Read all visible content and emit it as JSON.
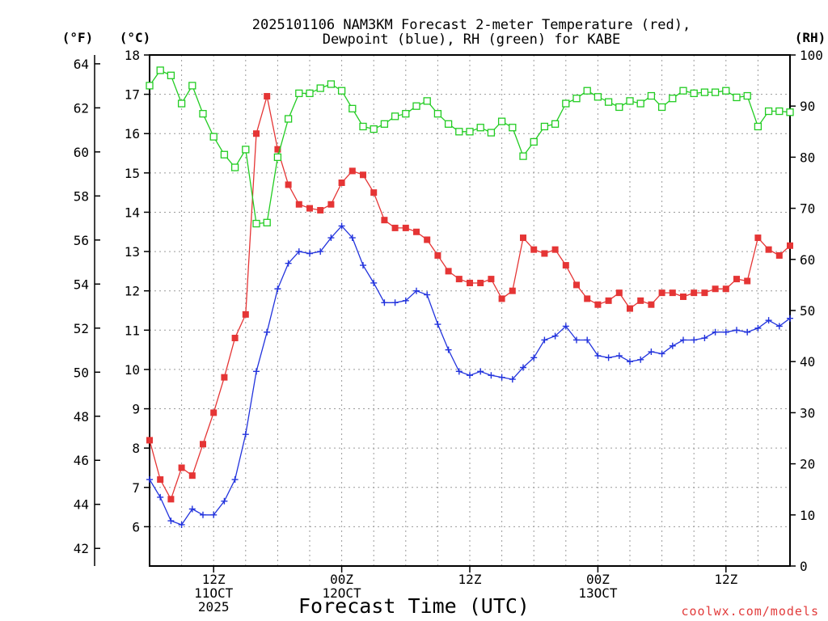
{
  "chart_data": {
    "type": "line",
    "title": "2025101106 NAM3KM Forecast 2-meter Temperature (red),",
    "subtitle": "Dewpoint (blue), RH (green) for KABE",
    "xlabel": "Forecast Time (UTC)",
    "x_units": "forecast hour",
    "x_range": [
      0,
      60
    ],
    "axes": {
      "left_f": {
        "label": "(°F)",
        "range": [
          41.2,
          64.4
        ],
        "ticks": [
          42,
          44,
          46,
          48,
          50,
          52,
          54,
          56,
          58,
          60,
          62,
          64
        ]
      },
      "left_c": {
        "label": "(°C)",
        "range": [
          5,
          18
        ],
        "ticks": [
          6,
          7,
          8,
          9,
          10,
          11,
          12,
          13,
          14,
          15,
          16,
          17,
          18
        ]
      },
      "right_rh": {
        "label": "(RH)",
        "range": [
          0,
          100
        ],
        "ticks": [
          0,
          10,
          20,
          30,
          40,
          50,
          60,
          70,
          80,
          90,
          100
        ]
      }
    },
    "x_ticks": [
      {
        "hour": 6,
        "lines": [
          "12Z",
          "11OCT",
          "2025"
        ]
      },
      {
        "hour": 18,
        "lines": [
          "00Z",
          "12OCT"
        ]
      },
      {
        "hour": 30,
        "lines": [
          "12Z"
        ]
      },
      {
        "hour": 42,
        "lines": [
          "00Z",
          "13OCT"
        ]
      },
      {
        "hour": 54,
        "lines": [
          "12Z"
        ]
      }
    ],
    "grid": true,
    "series": [
      {
        "name": "2-meter Temperature",
        "unit": "°C",
        "color": "#e53535",
        "marker": "filled-square",
        "x": [
          0,
          1,
          2,
          3,
          4,
          5,
          6,
          7,
          8,
          9,
          10,
          11,
          12,
          13,
          14,
          15,
          16,
          17,
          18,
          19,
          20,
          21,
          22,
          23,
          24,
          25,
          26,
          27,
          28,
          29,
          30,
          31,
          32,
          33,
          34,
          35,
          36,
          37,
          38,
          39,
          40,
          41,
          42,
          43,
          44,
          45,
          46,
          47,
          48,
          49,
          50,
          51,
          52,
          53,
          54,
          55,
          56,
          57,
          58,
          59,
          60
        ],
        "values": [
          8.2,
          7.2,
          6.7,
          7.5,
          7.3,
          8.1,
          8.9,
          9.8,
          10.8,
          11.4,
          16.0,
          16.95,
          15.6,
          14.7,
          14.2,
          14.1,
          14.05,
          14.2,
          14.75,
          15.05,
          14.95,
          14.5,
          13.8,
          13.6,
          13.6,
          13.5,
          13.3,
          12.9,
          12.5,
          12.3,
          12.2,
          12.2,
          12.3,
          11.8,
          12.0,
          13.35,
          13.05,
          12.95,
          13.05,
          12.65,
          12.15,
          11.8,
          11.65,
          11.75,
          11.95,
          11.55,
          11.75,
          11.65,
          11.95,
          11.95,
          11.85,
          11.95,
          11.95,
          12.05,
          12.05,
          12.3,
          12.25,
          13.35,
          13.05,
          12.9,
          13.15
        ]
      },
      {
        "name": "Dewpoint",
        "unit": "°C",
        "color": "#2233dd",
        "marker": "plus",
        "x": [
          0,
          1,
          2,
          3,
          4,
          5,
          6,
          7,
          8,
          9,
          10,
          11,
          12,
          13,
          14,
          15,
          16,
          17,
          18,
          19,
          20,
          21,
          22,
          23,
          24,
          25,
          26,
          27,
          28,
          29,
          30,
          31,
          32,
          33,
          34,
          35,
          36,
          37,
          38,
          39,
          40,
          41,
          42,
          43,
          44,
          45,
          46,
          47,
          48,
          49,
          50,
          51,
          52,
          53,
          54,
          55,
          56,
          57,
          58,
          59,
          60
        ],
        "values": [
          7.2,
          6.75,
          6.15,
          6.05,
          6.45,
          6.3,
          6.3,
          6.65,
          7.2,
          8.35,
          9.95,
          10.95,
          12.05,
          12.7,
          13.0,
          12.95,
          13.0,
          13.35,
          13.65,
          13.35,
          12.65,
          12.2,
          11.7,
          11.7,
          11.75,
          12.0,
          11.9,
          11.15,
          10.5,
          9.95,
          9.85,
          9.95,
          9.85,
          9.8,
          9.75,
          10.05,
          10.3,
          10.75,
          10.85,
          11.1,
          10.75,
          10.75,
          10.35,
          10.3,
          10.35,
          10.2,
          10.25,
          10.45,
          10.4,
          10.6,
          10.75,
          10.75,
          10.8,
          10.95,
          10.95,
          11.0,
          10.95,
          11.05,
          11.25,
          11.1,
          11.3
        ]
      },
      {
        "name": "Relative Humidity",
        "unit": "%",
        "color": "#22cc22",
        "marker": "open-square",
        "x": [
          0,
          1,
          2,
          3,
          4,
          5,
          6,
          7,
          8,
          9,
          10,
          11,
          12,
          13,
          14,
          15,
          16,
          17,
          18,
          19,
          20,
          21,
          22,
          23,
          24,
          25,
          26,
          27,
          28,
          29,
          30,
          31,
          32,
          33,
          34,
          35,
          36,
          37,
          38,
          39,
          40,
          41,
          42,
          43,
          44,
          45,
          46,
          47,
          48,
          49,
          50,
          51,
          52,
          53,
          54,
          55,
          56,
          57,
          58,
          59,
          60
        ],
        "values": [
          94,
          97,
          96,
          90.5,
          94,
          88.5,
          84,
          80.5,
          78,
          81.5,
          67,
          67.2,
          80,
          87.5,
          92.5,
          92.5,
          93.5,
          94.3,
          93,
          89.5,
          86,
          85.5,
          86.5,
          88,
          88.5,
          90,
          91,
          88.5,
          86.5,
          85,
          85,
          85.8,
          84.8,
          87,
          85.8,
          80.2,
          83,
          86,
          86.5,
          90.5,
          91.5,
          93,
          91.8,
          90.8,
          89.8,
          91,
          90.5,
          92,
          89.8,
          91.5,
          93,
          92.5,
          92.7,
          92.7,
          93,
          91.7,
          92,
          86,
          89,
          89,
          88.8
        ]
      }
    ]
  },
  "credit": "coolwx.com/models"
}
